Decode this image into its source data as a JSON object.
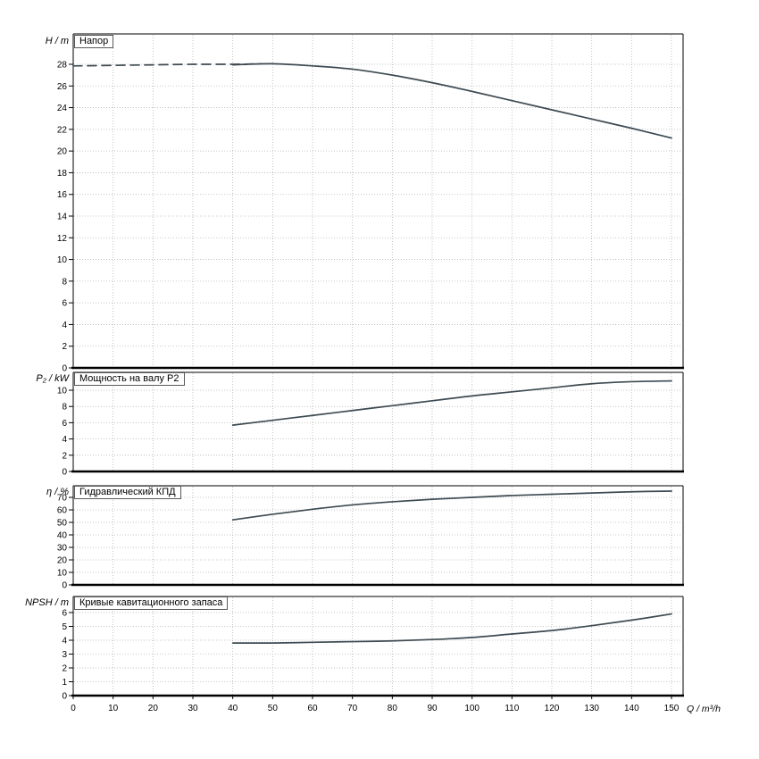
{
  "figure": {
    "xlabel": "Q / m³/h",
    "xticks": [
      0,
      10,
      20,
      30,
      40,
      50,
      60,
      70,
      80,
      90,
      100,
      110,
      120,
      130,
      140,
      150
    ],
    "xlim": [
      0,
      150
    ],
    "colors": {
      "curve": "#3d4a52",
      "grid": "#b4b4b4",
      "axis": "#000000",
      "background": "#ffffff"
    }
  },
  "chart_data": [
    {
      "type": "line",
      "title": "Напор",
      "ylabel": "H / m",
      "xlabel": "Q / m³/h",
      "ylim": [
        0,
        30.8
      ],
      "yticks": [
        0,
        2,
        4,
        6,
        8,
        10,
        12,
        14,
        16,
        18,
        20,
        22,
        24,
        26,
        28
      ],
      "grid": true,
      "series": [
        {
          "name": "head-below-min-flow",
          "style": "dashed",
          "x": [
            0,
            10,
            20,
            30,
            40,
            47
          ],
          "y": [
            27.85,
            27.9,
            27.95,
            28.0,
            28.0,
            28.05
          ]
        },
        {
          "name": "head",
          "style": "solid",
          "x": [
            40,
            50,
            60,
            70,
            80,
            90,
            100,
            110,
            120,
            130,
            140,
            150
          ],
          "y": [
            27.95,
            28.05,
            27.85,
            27.55,
            27.0,
            26.3,
            25.5,
            24.65,
            23.8,
            22.95,
            22.1,
            21.2
          ]
        }
      ]
    },
    {
      "type": "line",
      "title": "Мощность на валу P2",
      "ylabel": "P₂ / kW",
      "xlabel": "Q / m³/h",
      "ylim": [
        0,
        12.2
      ],
      "yticks": [
        0,
        2,
        4,
        6,
        8,
        10
      ],
      "grid": true,
      "series": [
        {
          "name": "shaft-power",
          "style": "solid",
          "x": [
            40,
            50,
            60,
            70,
            80,
            90,
            100,
            110,
            120,
            130,
            140,
            150
          ],
          "y": [
            5.7,
            6.3,
            6.9,
            7.5,
            8.1,
            8.7,
            9.3,
            9.8,
            10.3,
            10.8,
            11.05,
            11.15
          ]
        }
      ]
    },
    {
      "type": "line",
      "title": "Гидравлический КПД",
      "ylabel": "η / %",
      "xlabel": "Q / m³/h",
      "ylim": [
        0,
        79.3
      ],
      "yticks": [
        0,
        10,
        20,
        30,
        40,
        50,
        60,
        70
      ],
      "grid": true,
      "series": [
        {
          "name": "hydraulic-efficiency",
          "style": "solid",
          "x": [
            40,
            50,
            60,
            70,
            80,
            90,
            100,
            110,
            120,
            130,
            140,
            150
          ],
          "y": [
            52,
            56.5,
            60.5,
            64,
            66.5,
            68.5,
            70,
            71.5,
            72.5,
            73.5,
            74.5,
            75
          ]
        }
      ]
    },
    {
      "type": "line",
      "title": "Кривые кавитационного запаса",
      "ylabel": "NPSH / m",
      "xlabel": "Q / m³/h",
      "ylim": [
        0,
        7.16
      ],
      "yticks": [
        0,
        1,
        2,
        3,
        4,
        5,
        6
      ],
      "grid": true,
      "series": [
        {
          "name": "npsh",
          "style": "solid",
          "x": [
            40,
            50,
            60,
            70,
            80,
            90,
            100,
            110,
            120,
            130,
            140,
            150
          ],
          "y": [
            3.8,
            3.8,
            3.85,
            3.9,
            3.95,
            4.05,
            4.2,
            4.45,
            4.7,
            5.05,
            5.45,
            5.9
          ]
        }
      ]
    }
  ]
}
